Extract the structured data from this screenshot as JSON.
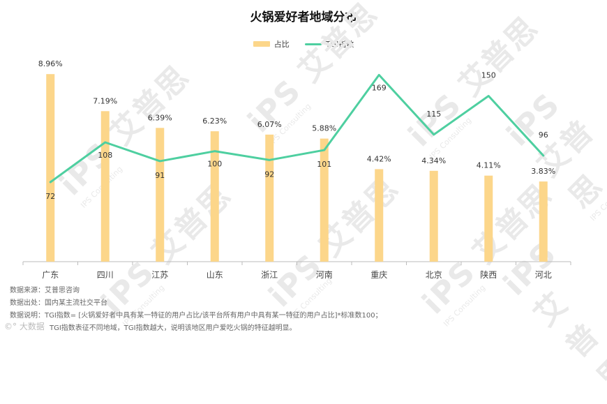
{
  "chart_data": {
    "type": "bar",
    "title": "火锅爱好者地域分布",
    "categories": [
      "广东",
      "四川",
      "江苏",
      "山东",
      "浙江",
      "河南",
      "重庆",
      "北京",
      "陕西",
      "河北"
    ],
    "series": [
      {
        "name": "占比",
        "type": "bar",
        "values": [
          8.96,
          7.19,
          6.39,
          6.23,
          6.07,
          5.88,
          4.42,
          4.34,
          4.11,
          3.83
        ],
        "labels": [
          "8.96%",
          "7.19%",
          "6.39%",
          "6.23%",
          "6.07%",
          "5.88%",
          "4.42%",
          "4.34%",
          "4.11%",
          "3.83%"
        ],
        "color": "#fcd68a"
      },
      {
        "name": "TGI指数",
        "type": "line",
        "values": [
          72,
          108,
          91,
          100,
          92,
          101,
          169,
          115,
          150,
          96
        ],
        "labels": [
          "72",
          "108",
          "91",
          "100",
          "92",
          "101",
          "169",
          "115",
          "150",
          "96"
        ],
        "color": "#4ecfa0"
      }
    ],
    "ylim_bar": [
      0,
      9.5
    ],
    "ylim_line": [
      0,
      180
    ],
    "legend_position": "top-center",
    "grid": false
  },
  "notes": {
    "source": "数据来源：艾普思咨询",
    "origin": "数据出处：国内某主流社交平台",
    "explain": "数据说明：TGI指数= [火锅爱好者中具有某一特征的用户占比/该平台所有用户中具有某一特征的用户占比]*标准数100；",
    "explain2": "TGI指数表征不同地域，TGI指数越大，说明该地区用户爱吃火锅的特征越明显。"
  },
  "watermark": {
    "mark": "iPS 艾普思",
    "sub": "IPS Consulting"
  },
  "footer": {
    "brand": "©° 大数据"
  }
}
